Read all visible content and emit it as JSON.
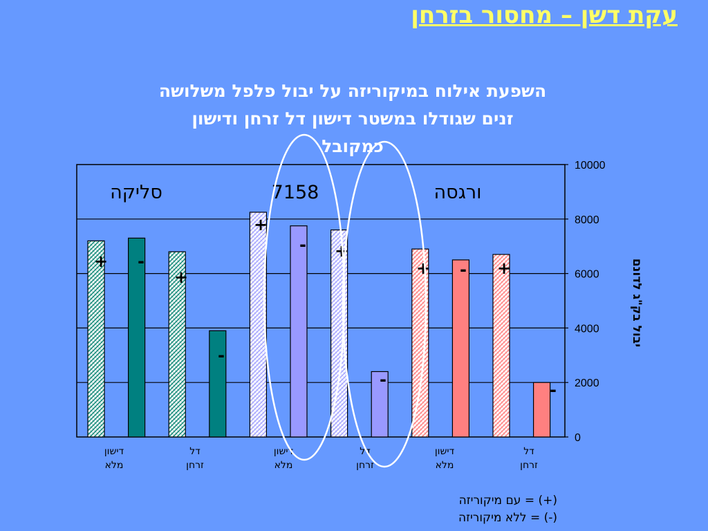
{
  "slide": {
    "title": "עקת דשן – מחסור בזרחן"
  },
  "chart_data": {
    "type": "bar",
    "title_lines": [
      "השפעת אילוח במיקוריזה על יבול פלפל משלושה",
      "זנים שגודלו במשטר דישון דל זרחן ודישון",
      "כמקובל"
    ],
    "ylabel": "יבול בק\"ג לדונם",
    "ylim": [
      0,
      10000
    ],
    "yticks": [
      "0",
      "2000",
      "4000",
      "6000",
      "8000",
      "10000"
    ],
    "varieties": [
      {
        "name": "סליקה",
        "color": "#008080",
        "hatch_color": "#1f8f7f"
      },
      {
        "name": "7158",
        "color": "#9999ff",
        "hatch_color": "#aaaaff"
      },
      {
        "name": "ורגסה",
        "color": "#ff8080",
        "hatch_color": "#ff8888"
      }
    ],
    "group_labels": [
      "דישון\nמלא",
      "דל\nזרחן",
      "דישון\nמלא",
      "דל\nזרחן",
      "דישון\nמלא",
      "דל\nזרחן"
    ],
    "bars": [
      {
        "variety": 0,
        "group": 0,
        "mycorrhiza": "+",
        "value": 7200
      },
      {
        "variety": 0,
        "group": 0,
        "mycorrhiza": "-",
        "value": 7300
      },
      {
        "variety": 0,
        "group": 1,
        "mycorrhiza": "+",
        "value": 6800
      },
      {
        "variety": 0,
        "group": 1,
        "mycorrhiza": "-",
        "value": 3900
      },
      {
        "variety": 1,
        "group": 2,
        "mycorrhiza": "+",
        "value": 8250
      },
      {
        "variety": 1,
        "group": 2,
        "mycorrhiza": "-",
        "value": 7750
      },
      {
        "variety": 1,
        "group": 3,
        "mycorrhiza": "+",
        "value": 7600
      },
      {
        "variety": 1,
        "group": 3,
        "mycorrhiza": "-",
        "value": 2400
      },
      {
        "variety": 2,
        "group": 4,
        "mycorrhiza": "+",
        "value": 6900
      },
      {
        "variety": 2,
        "group": 4,
        "mycorrhiza": "-",
        "value": 6500
      },
      {
        "variety": 2,
        "group": 5,
        "mycorrhiza": "+",
        "value": 6700
      },
      {
        "variety": 2,
        "group": 5,
        "mycorrhiza": "-",
        "value": 2000
      }
    ],
    "legend": [
      "(+) = עם מיקוריזה",
      "(-) = ללא מיקוריזה"
    ],
    "grid": true
  }
}
